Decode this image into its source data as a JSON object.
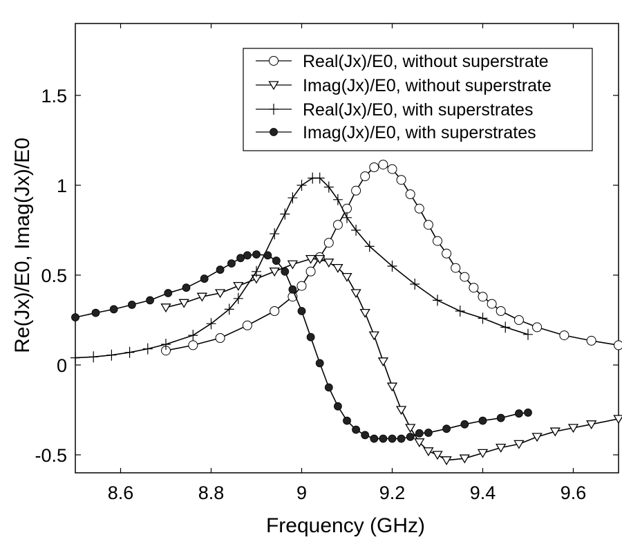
{
  "chart_data": {
    "type": "line",
    "title": "",
    "xlabel": "Frequency (GHz)",
    "ylabel": "Re(Jx)/E0, Imag(Jx)/E0",
    "xlim": [
      8.5,
      9.7
    ],
    "ylim": [
      -0.6,
      1.9
    ],
    "xticks": [
      8.6,
      8.8,
      9,
      9.2,
      9.4,
      9.6
    ],
    "xtick_labels": [
      "8.6",
      "8.8",
      "9",
      "9.2",
      "9.4",
      "9.6"
    ],
    "yticks": [
      -0.5,
      0,
      0.5,
      1,
      1.5
    ],
    "ytick_labels": [
      "-0.5",
      "0",
      "0.5",
      "1",
      "1.5"
    ],
    "grid": false,
    "legend_position": "top-right",
    "line_color": "#000000",
    "series": [
      {
        "name": "Real(Jx)/E0, without superstrate",
        "marker": "open-circle",
        "x": [
          8.7,
          8.76,
          8.82,
          8.88,
          8.94,
          8.98,
          9.0,
          9.02,
          9.04,
          9.06,
          9.08,
          9.1,
          9.12,
          9.14,
          9.16,
          9.18,
          9.2,
          9.22,
          9.24,
          9.26,
          9.28,
          9.3,
          9.32,
          9.34,
          9.36,
          9.38,
          9.4,
          9.42,
          9.44,
          9.48,
          9.52,
          9.58,
          9.64,
          9.7
        ],
        "y": [
          0.08,
          0.11,
          0.15,
          0.22,
          0.3,
          0.38,
          0.44,
          0.52,
          0.6,
          0.68,
          0.78,
          0.87,
          0.97,
          1.05,
          1.1,
          1.115,
          1.09,
          1.03,
          0.95,
          0.87,
          0.78,
          0.69,
          0.62,
          0.54,
          0.49,
          0.43,
          0.38,
          0.34,
          0.3,
          0.25,
          0.21,
          0.165,
          0.135,
          0.11
        ]
      },
      {
        "name": "Imag(Jx)/E0, without superstrate",
        "marker": "open-triangle-down",
        "x": [
          8.7,
          8.74,
          8.78,
          8.82,
          8.86,
          8.9,
          8.94,
          8.98,
          9.02,
          9.04,
          9.06,
          9.08,
          9.1,
          9.12,
          9.14,
          9.16,
          9.18,
          9.2,
          9.22,
          9.24,
          9.26,
          9.28,
          9.3,
          9.32,
          9.36,
          9.4,
          9.44,
          9.48,
          9.52,
          9.56,
          9.6,
          9.64,
          9.7
        ],
        "y": [
          0.32,
          0.345,
          0.38,
          0.4,
          0.44,
          0.48,
          0.52,
          0.56,
          0.59,
          0.59,
          0.57,
          0.54,
          0.49,
          0.4,
          0.29,
          0.165,
          0.02,
          -0.12,
          -0.25,
          -0.35,
          -0.43,
          -0.48,
          -0.5,
          -0.53,
          -0.52,
          -0.49,
          -0.46,
          -0.44,
          -0.4,
          -0.37,
          -0.35,
          -0.33,
          -0.3
        ]
      },
      {
        "name": "Real(Jx)/E0, with superstrates",
        "marker": "plus",
        "x": [
          8.5,
          8.54,
          8.58,
          8.62,
          8.66,
          8.7,
          8.76,
          8.8,
          8.84,
          8.86,
          8.9,
          8.94,
          8.963,
          8.98,
          9.0,
          9.024,
          9.04,
          9.06,
          9.08,
          9.1,
          9.12,
          9.15,
          9.2,
          9.25,
          9.3,
          9.35,
          9.4,
          9.45,
          9.5
        ],
        "y": [
          0.04,
          0.045,
          0.055,
          0.07,
          0.09,
          0.115,
          0.165,
          0.23,
          0.31,
          0.37,
          0.52,
          0.73,
          0.84,
          0.93,
          1.0,
          1.04,
          1.04,
          0.99,
          0.92,
          0.82,
          0.75,
          0.66,
          0.55,
          0.45,
          0.36,
          0.3,
          0.26,
          0.21,
          0.17
        ]
      },
      {
        "name": "Imag(Jx)/E0, with superstrates",
        "marker": "filled-circle",
        "x": [
          8.5,
          8.545,
          8.585,
          8.625,
          8.665,
          8.705,
          8.745,
          8.785,
          8.82,
          8.845,
          8.865,
          8.88,
          8.9,
          8.925,
          8.944,
          8.963,
          8.98,
          9.0,
          9.02,
          9.04,
          9.06,
          9.08,
          9.1,
          9.12,
          9.14,
          9.16,
          9.18,
          9.2,
          9.22,
          9.24,
          9.26,
          9.28,
          9.32,
          9.36,
          9.4,
          9.44,
          9.48,
          9.5
        ],
        "y": [
          0.265,
          0.29,
          0.31,
          0.335,
          0.36,
          0.4,
          0.43,
          0.48,
          0.53,
          0.565,
          0.595,
          0.61,
          0.615,
          0.61,
          0.58,
          0.52,
          0.42,
          0.3,
          0.155,
          0.01,
          -0.125,
          -0.23,
          -0.31,
          -0.36,
          -0.39,
          -0.41,
          -0.41,
          -0.41,
          -0.41,
          -0.4,
          -0.38,
          -0.377,
          -0.355,
          -0.33,
          -0.31,
          -0.295,
          -0.27,
          -0.265
        ]
      }
    ]
  }
}
